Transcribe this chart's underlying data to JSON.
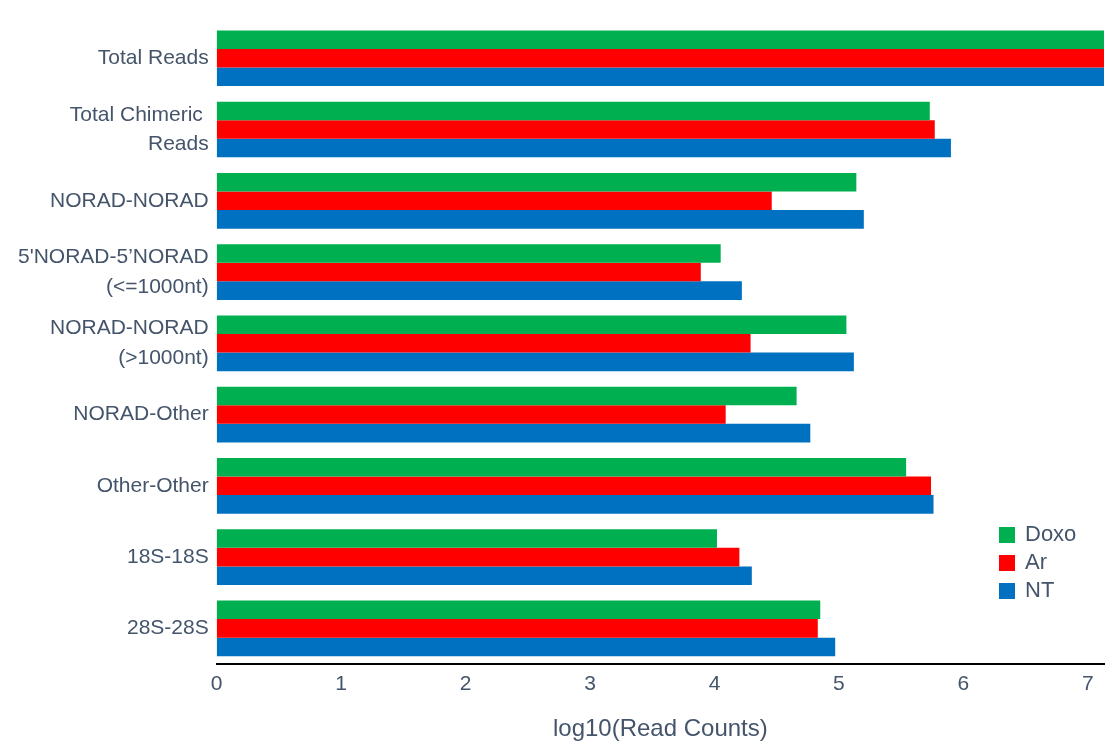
{
  "chart_data": {
    "type": "bar",
    "orientation": "horizontal",
    "xlabel": "log10(Read Counts)",
    "categories": [
      "Total Reads",
      "Total Chimeric \nReads",
      "NORAD-NORAD",
      "5'NORAD-5’NORAD\n(<=1000nt)",
      "NORAD-NORAD\n(>1000nt)",
      "NORAD-Other",
      "Other-Other",
      "18S-18S",
      "28S-28S"
    ],
    "series": [
      {
        "name": "Doxo",
        "color": "#00b050",
        "values": [
          7.13,
          5.73,
          5.14,
          4.05,
          5.06,
          4.66,
          5.54,
          4.02,
          4.85
        ]
      },
      {
        "name": "Ar",
        "color": "#ff0000",
        "values": [
          7.13,
          5.77,
          4.46,
          3.89,
          4.29,
          4.09,
          5.74,
          4.2,
          4.83
        ]
      },
      {
        "name": "NT",
        "color": "#0070c0",
        "values": [
          7.13,
          5.9,
          5.2,
          4.22,
          5.12,
          4.77,
          5.76,
          4.3,
          4.97
        ]
      }
    ],
    "xlim": [
      0,
      7.13
    ],
    "xticks": [
      0,
      1,
      2,
      3,
      4,
      5,
      6,
      7
    ],
    "grid": false,
    "legend": "bottom right"
  }
}
